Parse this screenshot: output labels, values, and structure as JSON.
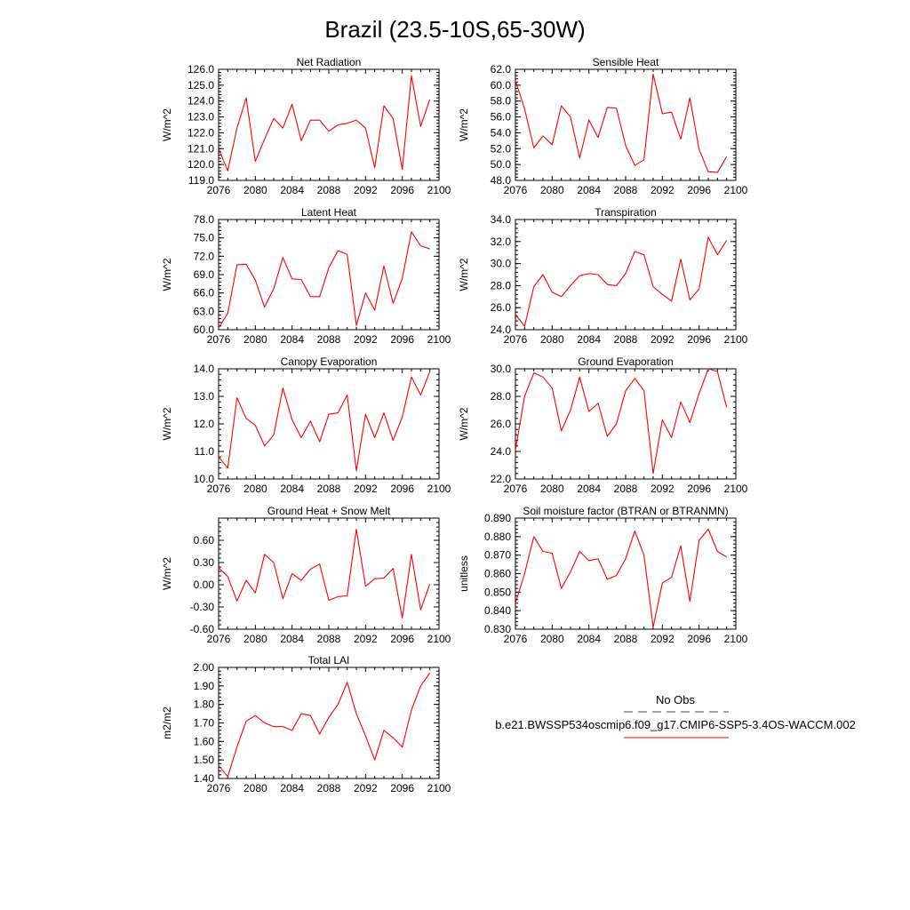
{
  "figure": {
    "title": "Brazil (23.5-10S,65-30W)"
  },
  "legend": {
    "obs_label": "No Obs",
    "model_label": "b.e21.BWSSP534oscmip6.f09_g17.CMIP6-SSP5-3.4OS-WACCM.002",
    "obs_color": "#3a3a8c",
    "model_color": "#ff0000"
  },
  "chart_data": [
    {
      "type": "line",
      "title": "Net Radiation",
      "ylabel": "W/m^2",
      "xlim": [
        2076,
        2100
      ],
      "ylim": [
        119.0,
        126.0
      ],
      "xticks": [
        "2076",
        "2080",
        "2084",
        "2088",
        "2092",
        "2096",
        "2100"
      ],
      "yticks": [
        "119.0",
        "120.0",
        "121.0",
        "122.0",
        "123.0",
        "124.0",
        "125.0",
        "126.0"
      ],
      "x": [
        2076,
        2077,
        2078,
        2079,
        2080,
        2081,
        2082,
        2083,
        2084,
        2085,
        2086,
        2087,
        2088,
        2089,
        2090,
        2091,
        2092,
        2093,
        2094,
        2095,
        2096,
        2097,
        2098,
        2099
      ],
      "series": [
        {
          "color": "#ff0000",
          "values": [
            121.0,
            119.6,
            122.3,
            124.2,
            120.2,
            121.6,
            122.9,
            122.3,
            123.8,
            121.5,
            122.8,
            122.8,
            122.1,
            122.5,
            122.6,
            122.8,
            122.3,
            119.8,
            123.7,
            122.9,
            119.7,
            125.6,
            122.4,
            124.1
          ]
        }
      ]
    },
    {
      "type": "line",
      "title": "Sensible Heat",
      "ylabel": "W/m^2",
      "xlim": [
        2076,
        2100
      ],
      "ylim": [
        48.0,
        62.0
      ],
      "xticks": [
        "2076",
        "2080",
        "2084",
        "2088",
        "2092",
        "2096",
        "2100"
      ],
      "yticks": [
        "48.0",
        "50.0",
        "52.0",
        "54.0",
        "56.0",
        "58.0",
        "60.0",
        "62.0"
      ],
      "x": [
        2076,
        2077,
        2078,
        2079,
        2080,
        2081,
        2082,
        2083,
        2084,
        2085,
        2086,
        2087,
        2088,
        2089,
        2090,
        2091,
        2092,
        2093,
        2094,
        2095,
        2096,
        2097,
        2098,
        2099
      ],
      "series": [
        {
          "color": "#ff0000",
          "values": [
            60.6,
            57.0,
            52.1,
            53.6,
            52.5,
            57.4,
            56.0,
            50.8,
            55.6,
            53.4,
            57.2,
            57.1,
            52.4,
            49.9,
            50.6,
            61.4,
            56.4,
            56.6,
            53.2,
            58.4,
            51.9,
            49.1,
            49.0,
            51.0
          ]
        }
      ]
    },
    {
      "type": "line",
      "title": "Latent Heat",
      "ylabel": "W/m^2",
      "xlim": [
        2076,
        2100
      ],
      "ylim": [
        60.0,
        78.0
      ],
      "xticks": [
        "2076",
        "2080",
        "2084",
        "2088",
        "2092",
        "2096",
        "2100"
      ],
      "yticks": [
        "60.0",
        "63.0",
        "66.0",
        "69.0",
        "72.0",
        "75.0",
        "78.0"
      ],
      "x": [
        2076,
        2077,
        2078,
        2079,
        2080,
        2081,
        2082,
        2083,
        2084,
        2085,
        2086,
        2087,
        2088,
        2089,
        2090,
        2091,
        2092,
        2093,
        2094,
        2095,
        2096,
        2097,
        2098,
        2099
      ],
      "series": [
        {
          "color": "#ff0000",
          "values": [
            60.3,
            62.7,
            70.6,
            70.7,
            68.1,
            63.7,
            66.7,
            71.8,
            68.3,
            68.2,
            65.4,
            65.4,
            70.1,
            72.9,
            72.3,
            60.7,
            66.0,
            63.2,
            70.4,
            64.3,
            68.4,
            76.0,
            73.7,
            73.2
          ]
        }
      ]
    },
    {
      "type": "line",
      "title": "Transpiration",
      "ylabel": "W/m^2",
      "xlim": [
        2076,
        2100
      ],
      "ylim": [
        24.0,
        34.0
      ],
      "xticks": [
        "2076",
        "2080",
        "2084",
        "2088",
        "2092",
        "2096",
        "2100"
      ],
      "yticks": [
        "24.0",
        "26.0",
        "28.0",
        "30.0",
        "32.0",
        "34.0"
      ],
      "x": [
        2076,
        2077,
        2078,
        2079,
        2080,
        2081,
        2082,
        2083,
        2084,
        2085,
        2086,
        2087,
        2088,
        2089,
        2090,
        2091,
        2092,
        2093,
        2094,
        2095,
        2096,
        2097,
        2098,
        2099
      ],
      "series": [
        {
          "color": "#ff0000",
          "values": [
            25.4,
            24.3,
            27.9,
            29.0,
            27.4,
            27.0,
            28.0,
            28.9,
            29.1,
            29.0,
            28.1,
            28.0,
            29.1,
            31.1,
            30.8,
            27.9,
            27.2,
            26.6,
            30.4,
            26.7,
            27.7,
            32.4,
            30.8,
            32.1
          ]
        }
      ]
    },
    {
      "type": "line",
      "title": "Canopy Evaporation",
      "ylabel": "W/m^2",
      "xlim": [
        2076,
        2100
      ],
      "ylim": [
        10.0,
        14.0
      ],
      "xticks": [
        "2076",
        "2080",
        "2084",
        "2088",
        "2092",
        "2096",
        "2100"
      ],
      "yticks": [
        "10.0",
        "11.0",
        "12.0",
        "13.0",
        "14.0"
      ],
      "x": [
        2076,
        2077,
        2078,
        2079,
        2080,
        2081,
        2082,
        2083,
        2084,
        2085,
        2086,
        2087,
        2088,
        2089,
        2090,
        2091,
        2092,
        2093,
        2094,
        2095,
        2096,
        2097,
        2098,
        2099
      ],
      "series": [
        {
          "color": "#ff0000",
          "values": [
            10.8,
            10.4,
            12.95,
            12.2,
            11.95,
            11.2,
            11.6,
            13.3,
            12.15,
            11.5,
            12.1,
            11.35,
            12.35,
            12.4,
            13.05,
            10.3,
            12.35,
            11.5,
            12.4,
            11.4,
            12.25,
            13.7,
            13.05,
            13.9
          ]
        }
      ]
    },
    {
      "type": "line",
      "title": "Ground Evaporation",
      "ylabel": "W/m^2",
      "xlim": [
        2076,
        2100
      ],
      "ylim": [
        22.0,
        30.0
      ],
      "xticks": [
        "2076",
        "2080",
        "2084",
        "2088",
        "2092",
        "2096",
        "2100"
      ],
      "yticks": [
        "22.0",
        "24.0",
        "26.0",
        "28.0",
        "30.0"
      ],
      "x": [
        2076,
        2077,
        2078,
        2079,
        2080,
        2081,
        2082,
        2083,
        2084,
        2085,
        2086,
        2087,
        2088,
        2089,
        2090,
        2091,
        2092,
        2093,
        2094,
        2095,
        2096,
        2097,
        2098,
        2099
      ],
      "series": [
        {
          "color": "#ff0000",
          "values": [
            24.1,
            28.0,
            29.7,
            29.4,
            28.6,
            25.5,
            27.0,
            29.4,
            26.9,
            27.5,
            25.1,
            26.0,
            28.4,
            29.3,
            28.4,
            22.4,
            26.3,
            25.0,
            27.6,
            26.1,
            28.2,
            30.0,
            29.8,
            27.2
          ]
        }
      ]
    },
    {
      "type": "line",
      "title": "Ground Heat + Snow Melt",
      "ylabel": "W/m^2",
      "xlim": [
        2076,
        2100
      ],
      "ylim": [
        -0.6,
        0.9
      ],
      "xticks": [
        "2076",
        "2080",
        "2084",
        "2088",
        "2092",
        "2096",
        "2100"
      ],
      "yticks": [
        "-0.60",
        "-0.30",
        "0.00",
        "0.30",
        "0.60"
      ],
      "ytick_values": [
        -0.6,
        -0.3,
        0.0,
        0.3,
        0.6
      ],
      "x": [
        2076,
        2077,
        2078,
        2079,
        2080,
        2081,
        2082,
        2083,
        2084,
        2085,
        2086,
        2087,
        2088,
        2089,
        2090,
        2091,
        2092,
        2093,
        2094,
        2095,
        2096,
        2097,
        2098,
        2099
      ],
      "series": [
        {
          "color": "#ff0000",
          "values": [
            0.23,
            0.11,
            -0.22,
            0.06,
            -0.11,
            0.41,
            0.3,
            -0.19,
            0.15,
            0.06,
            0.21,
            0.28,
            -0.21,
            -0.16,
            -0.15,
            0.75,
            -0.02,
            0.08,
            0.09,
            0.22,
            -0.45,
            0.41,
            -0.34,
            0.01
          ]
        }
      ]
    },
    {
      "type": "line",
      "title": "Soil moisture factor (BTRAN or BTRANMN)",
      "ylabel": "unitless",
      "xlim": [
        2076,
        2100
      ],
      "ylim": [
        0.83,
        0.89
      ],
      "xticks": [
        "2076",
        "2080",
        "2084",
        "2088",
        "2092",
        "2096",
        "2100"
      ],
      "yticks": [
        "0.830",
        "0.840",
        "0.850",
        "0.860",
        "0.870",
        "0.880",
        "0.890"
      ],
      "x": [
        2076,
        2077,
        2078,
        2079,
        2080,
        2081,
        2082,
        2083,
        2084,
        2085,
        2086,
        2087,
        2088,
        2089,
        2090,
        2091,
        2092,
        2093,
        2094,
        2095,
        2096,
        2097,
        2098,
        2099
      ],
      "series": [
        {
          "color": "#ff0000",
          "values": [
            0.844,
            0.86,
            0.88,
            0.872,
            0.871,
            0.852,
            0.861,
            0.872,
            0.867,
            0.868,
            0.857,
            0.859,
            0.868,
            0.883,
            0.87,
            0.831,
            0.855,
            0.858,
            0.875,
            0.845,
            0.878,
            0.884,
            0.872,
            0.869
          ]
        }
      ]
    },
    {
      "type": "line",
      "title": "Total LAI",
      "ylabel": "m2/m2",
      "xlim": [
        2076,
        2100
      ],
      "ylim": [
        1.4,
        2.0
      ],
      "xticks": [
        "2076",
        "2080",
        "2084",
        "2088",
        "2092",
        "2096",
        "2100"
      ],
      "yticks": [
        "1.40",
        "1.50",
        "1.60",
        "1.70",
        "1.80",
        "1.90",
        "2.00"
      ],
      "x": [
        2076,
        2077,
        2078,
        2079,
        2080,
        2081,
        2082,
        2083,
        2084,
        2085,
        2086,
        2087,
        2088,
        2089,
        2090,
        2091,
        2092,
        2093,
        2094,
        2095,
        2096,
        2097,
        2098,
        2099
      ],
      "series": [
        {
          "color": "#ff0000",
          "values": [
            1.47,
            1.41,
            1.57,
            1.71,
            1.74,
            1.7,
            1.68,
            1.68,
            1.66,
            1.75,
            1.74,
            1.64,
            1.73,
            1.8,
            1.92,
            1.75,
            1.63,
            1.5,
            1.66,
            1.62,
            1.57,
            1.77,
            1.9,
            1.97
          ]
        }
      ]
    }
  ]
}
